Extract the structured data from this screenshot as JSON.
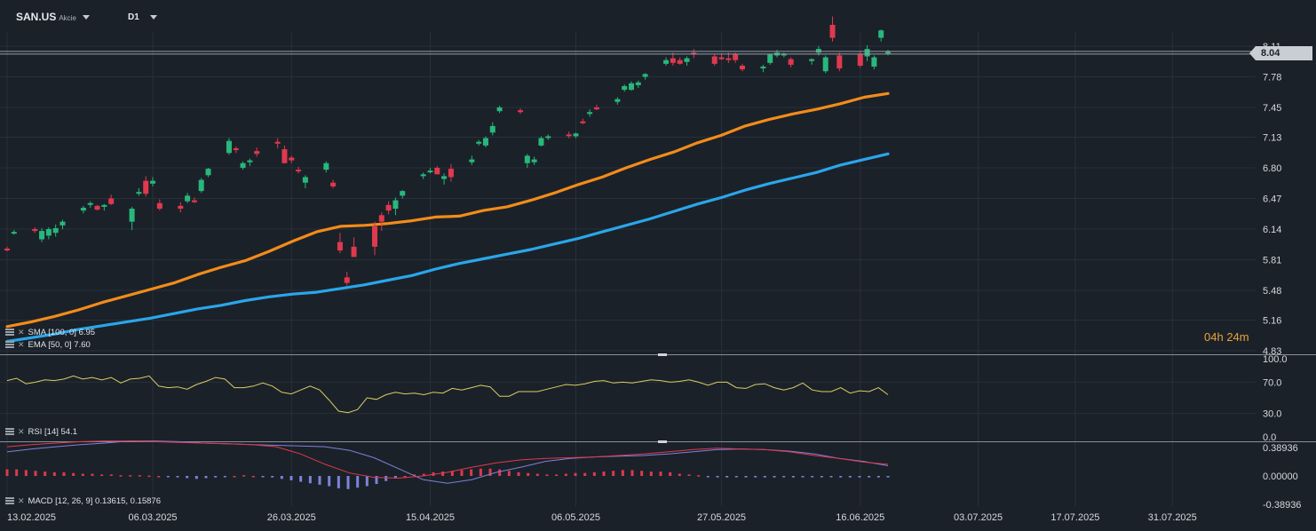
{
  "header": {
    "symbol": "SAN.US",
    "asset_type": "Akcie",
    "timeframe": "D1",
    "symbol_caret_icon": "caret-down-icon",
    "timeframe_caret_icon": "caret-down-icon"
  },
  "countdown": {
    "hours": "04h",
    "minutes": "24m"
  },
  "current_price_label": "8.04",
  "indicators": {
    "sma": {
      "label": "SMA [100, 0] 6.95",
      "color": "#2aa6ea"
    },
    "ema": {
      "label": "EMA [50, 0] 7.60",
      "color": "#f28c1a"
    },
    "rsi": {
      "label": "RSI [14]  54.1",
      "color": "#d8cf63"
    },
    "macd": {
      "label": "MACD [12, 26, 9] 0.13615,  0.15876"
    }
  },
  "colors": {
    "up": "#27b87b",
    "down": "#e0394e",
    "macd_pos": "#e0394e",
    "macd_neg": "#7b83db",
    "macd_line": "#7b83db",
    "signal_line": "#e0394e",
    "background": "#1b2129",
    "grid": "#28303a"
  },
  "chart_data": [
    {
      "type": "candlestick",
      "title": "",
      "y_ticks": [
        "8.11",
        "7.78",
        "7.45",
        "7.13",
        "6.80",
        "6.47",
        "6.14",
        "5.81",
        "5.48",
        "5.16",
        "4.83"
      ],
      "x_ticks": [
        "13.02.2025",
        "06.03.2025",
        "26.03.2025",
        "15.04.2025",
        "06.05.2025",
        "27.05.2025",
        "16.06.2025",
        "03.07.2025",
        "17.07.2025",
        "31.07.2025"
      ],
      "ylim": [
        4.83,
        8.11
      ],
      "x_range_days": [
        "2025-02-13",
        "2025-08-12"
      ],
      "candles": [
        [
          "2025-02-13",
          5.93,
          5.95,
          5.9,
          5.91
        ],
        [
          "2025-02-14",
          6.1,
          6.13,
          6.08,
          6.11
        ],
        [
          "2025-02-17",
          6.14,
          6.16,
          6.1,
          6.12
        ],
        [
          "2025-02-18",
          6.03,
          6.15,
          6.0,
          6.12
        ],
        [
          "2025-02-19",
          6.07,
          6.16,
          6.03,
          6.14
        ],
        [
          "2025-02-20",
          6.1,
          6.19,
          6.06,
          6.15
        ],
        [
          "2025-02-21",
          6.18,
          6.24,
          6.14,
          6.22
        ],
        [
          "2025-02-24",
          6.34,
          6.39,
          6.31,
          6.37
        ],
        [
          "2025-02-25",
          6.41,
          6.44,
          6.37,
          6.42
        ],
        [
          "2025-02-26",
          6.39,
          6.4,
          6.34,
          6.35
        ],
        [
          "2025-02-27",
          6.38,
          6.41,
          6.34,
          6.4
        ],
        [
          "2025-02-28",
          6.47,
          6.51,
          6.4,
          6.41
        ],
        [
          "2025-03-03",
          6.22,
          6.38,
          6.13,
          6.36
        ],
        [
          "2025-03-04",
          6.53,
          6.58,
          6.5,
          6.54
        ],
        [
          "2025-03-05",
          6.66,
          6.71,
          6.49,
          6.52
        ],
        [
          "2025-03-06",
          6.63,
          6.7,
          6.6,
          6.66
        ],
        [
          "2025-03-07",
          6.42,
          6.46,
          6.34,
          6.36
        ],
        [
          "2025-03-10",
          6.39,
          6.43,
          6.32,
          6.36
        ],
        [
          "2025-03-11",
          6.44,
          6.53,
          6.42,
          6.5
        ],
        [
          "2025-03-12",
          6.45,
          6.48,
          6.42,
          6.43
        ],
        [
          "2025-03-13",
          6.55,
          6.69,
          6.53,
          6.67
        ],
        [
          "2025-03-14",
          6.72,
          6.8,
          6.7,
          6.79
        ],
        [
          "2025-03-17",
          6.96,
          7.12,
          6.94,
          7.09
        ],
        [
          "2025-03-18",
          7.01,
          7.03,
          6.96,
          7.0
        ],
        [
          "2025-03-19",
          6.8,
          6.87,
          6.78,
          6.85
        ],
        [
          "2025-03-20",
          6.86,
          6.9,
          6.82,
          6.88
        ],
        [
          "2025-03-21",
          6.98,
          7.02,
          6.92,
          6.95
        ],
        [
          "2025-03-24",
          7.08,
          7.12,
          7.01,
          7.06
        ],
        [
          "2025-03-25",
          7.0,
          7.04,
          6.85,
          6.85
        ],
        [
          "2025-03-26",
          6.91,
          6.93,
          6.85,
          6.88
        ],
        [
          "2025-03-27",
          6.78,
          6.81,
          6.74,
          6.77
        ],
        [
          "2025-03-28",
          6.64,
          6.72,
          6.58,
          6.7
        ],
        [
          "2025-03-31",
          6.78,
          6.87,
          6.75,
          6.85
        ],
        [
          "2025-04-01",
          6.64,
          6.67,
          6.58,
          6.6
        ],
        [
          "2025-04-02",
          6.0,
          6.1,
          5.88,
          5.91
        ],
        [
          "2025-04-03",
          5.62,
          5.68,
          5.53,
          5.56
        ],
        [
          "2025-04-04",
          5.95,
          6.05,
          5.85,
          5.84
        ],
        [
          "2025-04-07",
          6.17,
          6.22,
          5.86,
          5.95
        ],
        [
          "2025-04-08",
          6.29,
          6.32,
          6.12,
          6.22
        ],
        [
          "2025-04-09",
          6.4,
          6.44,
          6.3,
          6.34
        ],
        [
          "2025-04-10",
          6.36,
          6.48,
          6.29,
          6.45
        ],
        [
          "2025-04-11",
          6.5,
          6.56,
          6.47,
          6.55
        ],
        [
          "2025-04-14",
          6.71,
          6.75,
          6.68,
          6.73
        ],
        [
          "2025-04-15",
          6.77,
          6.8,
          6.74,
          6.77
        ],
        [
          "2025-04-16",
          6.8,
          6.82,
          6.73,
          6.73
        ],
        [
          "2025-04-17",
          6.68,
          6.74,
          6.62,
          6.71
        ],
        [
          "2025-04-18",
          6.79,
          6.84,
          6.65,
          6.7
        ],
        [
          "2025-04-21",
          6.86,
          6.93,
          6.83,
          6.89
        ],
        [
          "2025-04-22",
          7.06,
          7.1,
          7.04,
          7.08
        ],
        [
          "2025-04-23",
          7.04,
          7.14,
          7.02,
          7.12
        ],
        [
          "2025-04-24",
          7.18,
          7.29,
          7.15,
          7.25
        ],
        [
          "2025-04-25",
          7.41,
          7.47,
          7.39,
          7.45
        ],
        [
          "2025-04-28",
          7.42,
          7.44,
          7.38,
          7.4
        ],
        [
          "2025-04-29",
          6.85,
          6.95,
          6.8,
          6.93
        ],
        [
          "2025-04-30",
          6.86,
          6.92,
          6.83,
          6.89
        ],
        [
          "2025-05-01",
          7.04,
          7.14,
          7.03,
          7.12
        ],
        [
          "2025-05-02",
          7.13,
          7.16,
          7.1,
          7.14
        ],
        [
          "2025-05-05",
          7.16,
          7.19,
          7.12,
          7.15
        ],
        [
          "2025-05-06",
          7.14,
          7.18,
          7.12,
          7.17
        ],
        [
          "2025-05-07",
          7.3,
          7.33,
          7.27,
          7.29
        ],
        [
          "2025-05-08",
          7.38,
          7.43,
          7.35,
          7.4
        ],
        [
          "2025-05-09",
          7.45,
          7.48,
          7.42,
          7.43
        ],
        [
          "2025-05-12",
          7.51,
          7.56,
          7.48,
          7.54
        ],
        [
          "2025-05-13",
          7.64,
          7.7,
          7.62,
          7.68
        ],
        [
          "2025-05-14",
          7.64,
          7.73,
          7.63,
          7.71
        ],
        [
          "2025-05-15",
          7.69,
          7.74,
          7.66,
          7.72
        ],
        [
          "2025-05-16",
          7.78,
          7.82,
          7.75,
          7.81
        ],
        [
          "2025-05-19",
          7.92,
          7.99,
          7.9,
          7.96
        ],
        [
          "2025-05-20",
          7.98,
          8.04,
          7.9,
          7.93
        ],
        [
          "2025-05-21",
          7.96,
          7.99,
          7.91,
          7.92
        ],
        [
          "2025-05-22",
          7.94,
          8.0,
          7.9,
          7.98
        ],
        [
          "2025-05-23",
          8.04,
          8.08,
          7.98,
          8.03
        ],
        [
          "2025-05-26",
          8.0,
          8.02,
          7.9,
          7.92
        ],
        [
          "2025-05-27",
          7.99,
          8.03,
          7.96,
          7.97
        ],
        [
          "2025-05-28",
          7.98,
          8.04,
          7.93,
          7.97
        ],
        [
          "2025-05-29",
          8.02,
          8.04,
          7.93,
          7.96
        ],
        [
          "2025-05-30",
          7.9,
          7.92,
          7.84,
          7.86
        ],
        [
          "2025-06-02",
          7.88,
          7.91,
          7.83,
          7.89
        ],
        [
          "2025-06-03",
          7.93,
          8.03,
          7.91,
          8.02
        ],
        [
          "2025-06-04",
          8.01,
          8.07,
          7.99,
          8.04
        ],
        [
          "2025-06-05",
          8.01,
          8.04,
          7.99,
          8.03
        ],
        [
          "2025-06-06",
          7.97,
          7.99,
          7.88,
          7.91
        ],
        [
          "2025-06-09",
          7.95,
          7.98,
          7.91,
          7.97
        ],
        [
          "2025-06-10",
          8.04,
          8.11,
          8.01,
          8.08
        ],
        [
          "2025-06-11",
          7.84,
          8.01,
          7.82,
          7.99
        ],
        [
          "2025-06-12",
          8.34,
          8.43,
          8.16,
          8.2
        ],
        [
          "2025-06-13",
          8.01,
          8.04,
          7.84,
          7.87
        ],
        [
          "2025-06-16",
          8.02,
          8.05,
          7.88,
          7.9
        ],
        [
          "2025-06-17",
          8.0,
          8.12,
          7.95,
          8.08
        ],
        [
          "2025-06-18",
          7.89,
          8.01,
          7.86,
          7.99
        ],
        [
          "2025-06-19",
          8.2,
          8.29,
          8.16,
          8.28
        ],
        [
          "2025-06-20",
          8.04,
          8.07,
          8.01,
          8.05
        ]
      ],
      "ema50": [
        5.09,
        5.14,
        5.2,
        5.27,
        5.35,
        5.42,
        5.49,
        5.56,
        5.65,
        5.73,
        5.8,
        5.9,
        6.01,
        6.11,
        6.17,
        6.18,
        6.2,
        6.23,
        6.27,
        6.28,
        6.34,
        6.38,
        6.45,
        6.53,
        6.62,
        6.7,
        6.8,
        6.89,
        6.97,
        7.07,
        7.15,
        7.25,
        7.32,
        7.38,
        7.43,
        7.49,
        7.56,
        7.6
      ],
      "sma100": [
        4.93,
        4.97,
        5.01,
        5.06,
        5.1,
        5.14,
        5.18,
        5.23,
        5.28,
        5.32,
        5.37,
        5.41,
        5.44,
        5.46,
        5.5,
        5.54,
        5.59,
        5.64,
        5.71,
        5.77,
        5.82,
        5.87,
        5.92,
        5.98,
        6.04,
        6.11,
        6.18,
        6.25,
        6.33,
        6.41,
        6.48,
        6.56,
        6.63,
        6.69,
        6.75,
        6.83,
        6.89,
        6.95
      ],
      "sma_color": "#2aa6ea",
      "ema_color": "#f28c1a"
    },
    {
      "type": "line",
      "name": "RSI [14]",
      "y_ticks": [
        "100.0",
        "70.0",
        "30.0",
        "0.0"
      ],
      "ylim": [
        0,
        100
      ],
      "values": [
        72,
        75,
        68,
        70,
        73,
        72,
        74,
        78,
        74,
        76,
        73,
        76,
        69,
        74,
        75,
        78,
        65,
        63,
        64,
        61,
        67,
        71,
        76,
        74,
        63,
        63,
        65,
        69,
        65,
        57,
        55,
        60,
        65,
        60,
        47,
        33,
        31,
        35,
        50,
        48,
        54,
        57,
        55,
        56,
        54,
        57,
        56,
        62,
        60,
        63,
        66,
        64,
        52,
        52,
        58,
        58,
        58,
        61,
        64,
        67,
        66,
        68,
        71,
        72,
        69,
        70,
        69,
        71,
        73,
        72,
        70,
        71,
        73,
        70,
        66,
        70,
        70,
        63,
        62,
        67,
        68,
        63,
        60,
        63,
        69,
        60,
        58,
        58,
        63,
        56,
        59,
        58,
        63,
        54
      ],
      "color": "#d8cf63"
    },
    {
      "type": "bar",
      "name": "MACD [12, 26, 9]",
      "y_ticks": [
        "0.38936",
        "0.00000",
        "-0.38936"
      ],
      "ylim": [
        -0.38936,
        0.38936
      ],
      "histogram": [
        0.09,
        0.09,
        0.08,
        0.07,
        0.06,
        0.05,
        0.05,
        0.04,
        0.03,
        0.03,
        0.02,
        0.02,
        0.01,
        0.01,
        0.01,
        0.005,
        0.0,
        -0.01,
        -0.02,
        -0.03,
        -0.04,
        -0.03,
        -0.02,
        -0.01,
        0.0,
        0.01,
        0.0,
        -0.01,
        -0.02,
        -0.04,
        -0.06,
        -0.08,
        -0.1,
        -0.12,
        -0.14,
        -0.17,
        -0.18,
        -0.16,
        -0.14,
        -0.11,
        -0.07,
        -0.03,
        0.0,
        0.02,
        0.03,
        0.05,
        0.06,
        0.07,
        0.08,
        0.09,
        0.1,
        0.1,
        0.09,
        0.07,
        0.05,
        0.04,
        0.03,
        0.02,
        0.02,
        0.03,
        0.04,
        0.04,
        0.05,
        0.06,
        0.07,
        0.08,
        0.08,
        0.07,
        0.06,
        0.06,
        0.05,
        0.03,
        0.02,
        0.01,
        -0.01,
        -0.02,
        -0.02,
        -0.01,
        -0.02,
        -0.02,
        -0.02,
        -0.02,
        -0.01,
        -0.02,
        -0.01,
        -0.01,
        -0.01,
        -0.01,
        -0.02,
        -0.02,
        -0.02,
        -0.02,
        -0.02,
        -0.02
      ],
      "macd_line": [
        0.33,
        0.37,
        0.4,
        0.43,
        0.45,
        0.48,
        0.48,
        0.47,
        0.45,
        0.44,
        0.43,
        0.42,
        0.41,
        0.4,
        0.35,
        0.25,
        0.1,
        -0.05,
        -0.1,
        -0.05,
        0.05,
        0.12,
        0.2,
        0.24,
        0.26,
        0.27,
        0.28,
        0.3,
        0.33,
        0.36,
        0.37,
        0.36,
        0.34,
        0.3,
        0.24,
        0.2,
        0.14
      ],
      "signal_line": [
        0.4,
        0.43,
        0.45,
        0.47,
        0.48,
        0.48,
        0.47,
        0.46,
        0.45,
        0.44,
        0.43,
        0.4,
        0.3,
        0.16,
        0.04,
        -0.02,
        -0.03,
        0.0,
        0.05,
        0.12,
        0.18,
        0.22,
        0.24,
        0.25,
        0.26,
        0.28,
        0.3,
        0.33,
        0.36,
        0.38,
        0.37,
        0.36,
        0.33,
        0.28,
        0.24,
        0.19,
        0.16
      ]
    }
  ]
}
